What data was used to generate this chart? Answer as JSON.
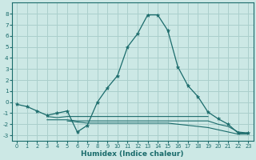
{
  "xlabel": "Humidex (Indice chaleur)",
  "ylabel": "",
  "bg_color": "#cce8e5",
  "grid_color": "#aacfcc",
  "line_color": "#1a6b6b",
  "xlim": [
    -0.5,
    23.5
  ],
  "ylim": [
    -3.5,
    9.0
  ],
  "xticks": [
    0,
    1,
    2,
    3,
    4,
    5,
    6,
    7,
    8,
    9,
    10,
    11,
    12,
    13,
    14,
    15,
    16,
    17,
    18,
    19,
    20,
    21,
    22,
    23
  ],
  "yticks": [
    -3,
    -2,
    -1,
    0,
    1,
    2,
    3,
    4,
    5,
    6,
    7,
    8
  ],
  "series": [
    {
      "x": [
        0,
        1,
        2,
        3,
        4,
        5,
        6,
        7,
        8,
        9,
        10,
        11,
        12,
        13,
        14,
        15,
        16,
        17,
        18,
        19,
        20,
        21,
        22,
        23
      ],
      "y": [
        -0.2,
        -0.4,
        -0.8,
        -1.2,
        -1.0,
        -0.8,
        -2.7,
        -2.1,
        0.0,
        1.3,
        2.4,
        5.0,
        6.2,
        7.9,
        7.9,
        6.5,
        3.2,
        1.5,
        0.5,
        -0.9,
        -1.5,
        -2.0,
        -2.8,
        -2.8
      ],
      "marker": true
    },
    {
      "x": [
        3,
        4,
        5,
        6,
        7,
        8,
        9,
        10,
        11,
        12,
        13,
        14,
        15,
        16,
        17,
        18,
        19
      ],
      "y": [
        -1.3,
        -1.4,
        -1.3,
        -1.3,
        -1.3,
        -1.3,
        -1.3,
        -1.3,
        -1.3,
        -1.3,
        -1.3,
        -1.3,
        -1.3,
        -1.3,
        -1.3,
        -1.3,
        -1.3
      ],
      "marker": false
    },
    {
      "x": [
        3,
        4,
        5,
        6,
        7,
        8,
        9,
        10,
        11,
        12,
        13,
        14,
        15,
        16,
        17,
        18,
        19,
        20,
        21,
        22,
        23
      ],
      "y": [
        -1.6,
        -1.6,
        -1.6,
        -1.7,
        -1.7,
        -1.7,
        -1.7,
        -1.7,
        -1.7,
        -1.7,
        -1.7,
        -1.7,
        -1.7,
        -1.7,
        -1.7,
        -1.7,
        -1.7,
        -2.0,
        -2.2,
        -2.7,
        -2.8
      ],
      "marker": false
    },
    {
      "x": [
        5,
        6,
        7,
        8,
        9,
        10,
        11,
        12,
        13,
        14,
        15,
        16,
        17,
        18,
        19,
        20,
        21,
        22,
        23
      ],
      "y": [
        -1.7,
        -1.8,
        -1.9,
        -1.9,
        -1.9,
        -1.9,
        -1.9,
        -1.9,
        -1.9,
        -1.9,
        -1.9,
        -2.0,
        -2.1,
        -2.2,
        -2.3,
        -2.5,
        -2.7,
        -2.9,
        -2.9
      ],
      "marker": false
    }
  ]
}
